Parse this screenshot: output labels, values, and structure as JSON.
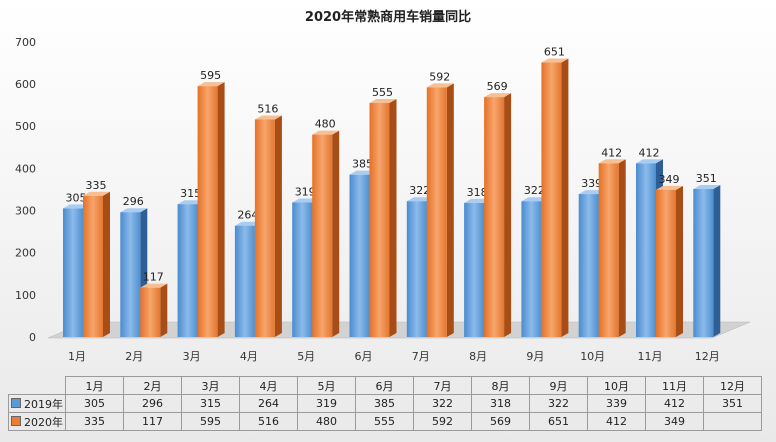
{
  "chart_data": {
    "type": "bar",
    "title": "2020年常熟商用车销量同比",
    "categories": [
      "1月",
      "2月",
      "3月",
      "4月",
      "5月",
      "6月",
      "7月",
      "8月",
      "9月",
      "10月",
      "11月",
      "12月"
    ],
    "series": [
      {
        "name": "2019年",
        "values": [
          305,
          296,
          315,
          264,
          319,
          385,
          322,
          318,
          322,
          339,
          412,
          351
        ],
        "color": "#5b9bd5"
      },
      {
        "name": "2020年",
        "values": [
          335,
          117,
          595,
          516,
          480,
          555,
          592,
          569,
          651,
          412,
          349,
          null
        ],
        "color": "#ed7d31"
      }
    ],
    "ylim": [
      0,
      700
    ],
    "yticks": [
      0,
      100,
      200,
      300,
      400,
      500,
      600,
      700
    ],
    "grid": false,
    "legend": "data-table"
  }
}
